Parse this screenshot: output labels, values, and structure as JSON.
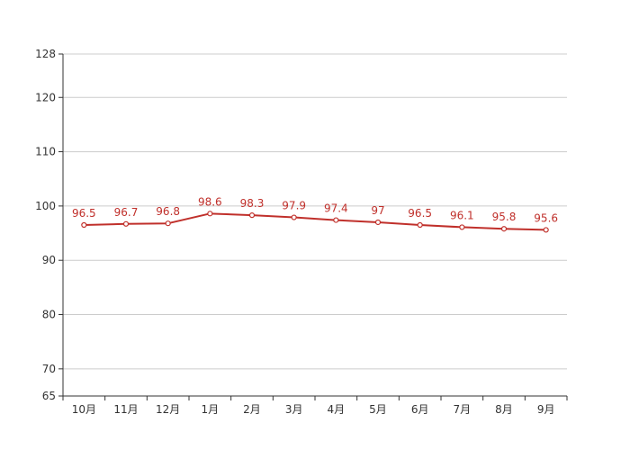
{
  "chart_data": {
    "type": "line",
    "categories": [
      "10月",
      "11月",
      "12月",
      "1月",
      "2月",
      "3月",
      "4月",
      "5月",
      "6月",
      "7月",
      "8月",
      "9月"
    ],
    "series": [
      {
        "values": [
          96.5,
          96.7,
          96.8,
          98.6,
          98.3,
          97.9,
          97.4,
          97,
          96.5,
          96.1,
          95.8,
          95.6
        ],
        "color": "#c0302b"
      }
    ],
    "data_labels": [
      "96.5",
      "96.7",
      "96.8",
      "98.6",
      "98.3",
      "97.9",
      "97.4",
      "97",
      "96.5",
      "96.1",
      "95.8",
      "95.6"
    ],
    "y_ticks": [
      65,
      70,
      80,
      90,
      100,
      110,
      120,
      128
    ],
    "y_tick_labels": [
      "65",
      "70",
      "80",
      "90",
      "100",
      "110",
      "120",
      "128"
    ],
    "ylim": [
      65,
      128
    ],
    "grid": true,
    "legend": "none",
    "title": "",
    "xlabel": "",
    "ylabel": ""
  }
}
